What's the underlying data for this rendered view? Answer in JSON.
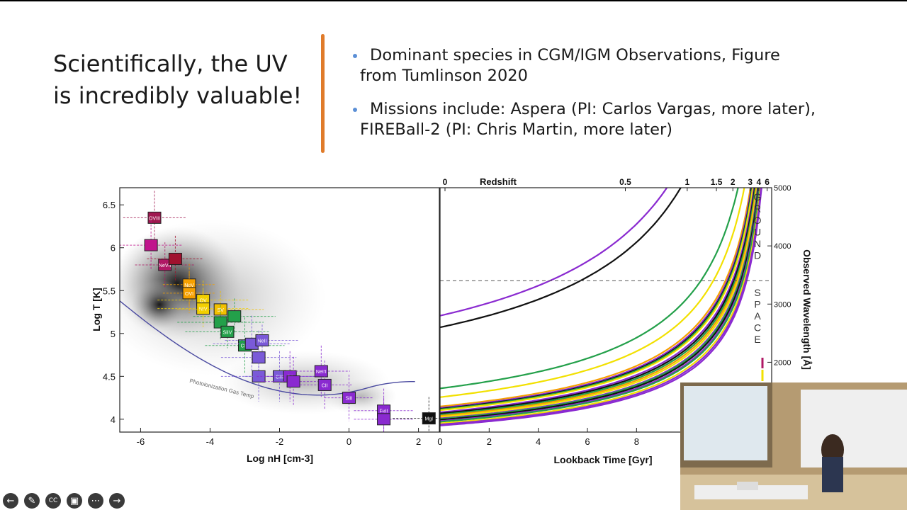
{
  "slide": {
    "title": "Scientifically, the UV is incredibly valuable!",
    "bullets": [
      {
        "line1": "Dominant species in CGM/IGM Observations, Figure",
        "line2": "from Tumlinson 2020"
      },
      {
        "line1": "Missions include: Aspera (PI: Carlos Vargas, more later),",
        "line2": "FIREBall-2 (PI: Chris Martin, more later)"
      }
    ],
    "accent_color": "#e07b2a",
    "bullet_color": "#5b8fd6"
  },
  "chart_data": [
    {
      "type": "scatter",
      "xlabel": "Log nH [cm-3]",
      "ylabel": "Log T [K]",
      "xlim": [
        -6.6,
        2.6
      ],
      "ylim": [
        3.85,
        6.7
      ],
      "x_ticks": [
        "-6",
        "-4",
        "-2",
        "0",
        "2"
      ],
      "y_ticks": [
        "6.5",
        "6",
        "5.5",
        "5",
        "4.5",
        "4"
      ],
      "annotation": "Photoionization Gas Temp",
      "points": [
        {
          "label": "OVIII",
          "x": -5.6,
          "y": 6.35,
          "color": "#a01850"
        },
        {
          "label": "",
          "x": -5.7,
          "y": 6.03,
          "color": "#c0148c"
        },
        {
          "label": "NeVII",
          "x": -5.3,
          "y": 5.8,
          "color": "#b01865"
        },
        {
          "label": "",
          "x": -5.0,
          "y": 5.87,
          "color": "#a0102e"
        },
        {
          "label": "NeV",
          "x": -4.6,
          "y": 5.57,
          "color": "#f5a000"
        },
        {
          "label": "OVI",
          "x": -4.6,
          "y": 5.47,
          "color": "#f5a000"
        },
        {
          "label": "OV",
          "x": -4.2,
          "y": 5.39,
          "color": "#f2d000"
        },
        {
          "label": "NIV",
          "x": -4.2,
          "y": 5.29,
          "color": "#f2d000"
        },
        {
          "label": "SV",
          "x": -3.7,
          "y": 5.28,
          "color": "#f2c000"
        },
        {
          "label": "",
          "x": -3.7,
          "y": 5.13,
          "color": "#23a04a"
        },
        {
          "label": "",
          "x": -3.3,
          "y": 5.2,
          "color": "#23a04a"
        },
        {
          "label": "SiIV",
          "x": -3.5,
          "y": 5.02,
          "color": "#23a04a"
        },
        {
          "label": "CIV",
          "x": -3.0,
          "y": 4.86,
          "color": "#23a04a"
        },
        {
          "label": "",
          "x": -2.8,
          "y": 4.88,
          "color": "#7a5ad8"
        },
        {
          "label": "NeII",
          "x": -2.5,
          "y": 4.92,
          "color": "#7a5ad8"
        },
        {
          "label": "",
          "x": -2.6,
          "y": 4.72,
          "color": "#7a5ad8"
        },
        {
          "label": "",
          "x": -2.6,
          "y": 4.5,
          "color": "#7a5ad8"
        },
        {
          "label": "CIII",
          "x": -2.0,
          "y": 4.5,
          "color": "#7a5ad8"
        },
        {
          "label": "OII",
          "x": -1.7,
          "y": 4.5,
          "color": "#8a2ad0"
        },
        {
          "label": "",
          "x": -1.6,
          "y": 4.44,
          "color": "#8a2ad0"
        },
        {
          "label": "NeIII",
          "x": -0.8,
          "y": 4.56,
          "color": "#8a2ad0"
        },
        {
          "label": "CII",
          "x": -0.7,
          "y": 4.4,
          "color": "#8a2ad0"
        },
        {
          "label": "SiII",
          "x": 0.0,
          "y": 4.25,
          "color": "#8a2ad0"
        },
        {
          "label": "FeII",
          "x": 1.0,
          "y": 4.1,
          "color": "#8a2ad0"
        },
        {
          "label": "",
          "x": 1.0,
          "y": 4.0,
          "color": "#8a2ad0"
        },
        {
          "label": "MgI",
          "x": 2.3,
          "y": 4.01,
          "color": "#111111"
        }
      ]
    },
    {
      "type": "line",
      "xlabel": "Lookback Time [Gyr]",
      "ylabel": "Observed Wavelength [Å]",
      "top_label": "Redshift",
      "xlim": [
        0,
        13.5
      ],
      "ylim": [
        800,
        5000
      ],
      "x_ticks": [
        "0",
        "2",
        "4",
        "6",
        "8",
        "10"
      ],
      "y_ticks": [
        "5000",
        "4000",
        "3000",
        "2000"
      ],
      "redshift_ticks": [
        "0",
        "0.5",
        "1",
        "1.5",
        "2",
        "3",
        "4",
        "6"
      ],
      "ground_label": "GROUND",
      "space_label": "SPACE",
      "divider_wavelength": 3400,
      "series_colors": [
        "#8a2ad0",
        "#111111",
        "#23a04a",
        "#f2e000",
        "#f5a000",
        "#8a2ad0",
        "#111111",
        "#23a04a",
        "#f2e000",
        "#8a2ad0",
        "#111111",
        "#23a04a",
        "#f5a000",
        "#f2e000",
        "#8a2ad0",
        "#23a04a",
        "#111111",
        "#8a2ad0",
        "#23a04a",
        "#f2e000",
        "#8a2ad0",
        "#8a2ad0"
      ],
      "rest_wavelengths": [
        2800,
        2600,
        1550,
        1400,
        1240,
        1216,
        1200,
        1190,
        1175,
        1140,
        1120,
        1100,
        1080,
        1060,
        1035,
        1025,
        1010,
        990,
        977,
        950,
        930,
        912
      ]
    }
  ],
  "controls": [
    {
      "name": "back-icon",
      "glyph": "←"
    },
    {
      "name": "pen-icon",
      "glyph": "✎"
    },
    {
      "name": "captions-icon",
      "glyph": "CC"
    },
    {
      "name": "video-off-icon",
      "glyph": "▣"
    },
    {
      "name": "more-icon",
      "glyph": "⋯"
    },
    {
      "name": "forward-icon",
      "glyph": "→"
    }
  ]
}
